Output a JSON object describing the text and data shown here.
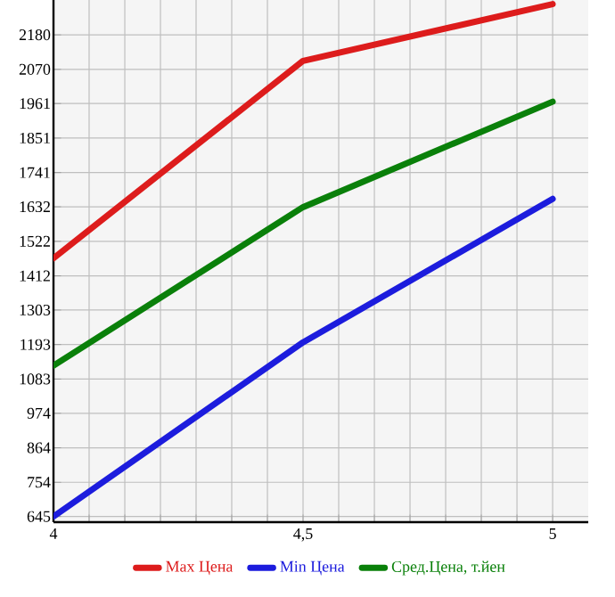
{
  "chart_data": {
    "type": "line",
    "x": [
      4,
      4.5,
      5
    ],
    "series": [
      {
        "name": "Max Цена",
        "color": "#dd1c1c",
        "values": [
          1468,
          2097,
          2278
        ]
      },
      {
        "name": "Min Цена",
        "color": "#1c1cdd",
        "values": [
          645,
          1200,
          1657
        ]
      },
      {
        "name": "Сред.Цена, т.йен",
        "color": "#0a800a",
        "values": [
          1126,
          1631,
          1967
        ]
      }
    ],
    "xlim": [
      4,
      5.0714
    ],
    "xticks": [
      4,
      {
        "value": 4.0714,
        "label": null
      },
      {
        "value": 4.1429,
        "label": null
      },
      {
        "value": 4.2143,
        "label": null
      },
      {
        "value": 4.2857,
        "label": null
      },
      {
        "value": 4.3571,
        "label": null
      },
      {
        "value": 4.4286,
        "label": null
      },
      {
        "value": 4.5,
        "label": "4,5"
      },
      {
        "value": 4.5714,
        "label": null
      },
      {
        "value": 4.6429,
        "label": null
      },
      {
        "value": 4.7143,
        "label": null
      },
      {
        "value": 4.7857,
        "label": null
      },
      {
        "value": 4.8571,
        "label": null
      },
      {
        "value": 4.9286,
        "label": null
      },
      5
    ],
    "ylim": [
      627,
      2291
    ],
    "yticks": [
      645,
      754,
      864,
      974,
      1083,
      1193,
      1303,
      1412,
      1522,
      1632,
      1741,
      1851,
      1961,
      2070,
      2180
    ],
    "grid": true,
    "legend": "bottom",
    "marker": "none",
    "line_style": "solid"
  }
}
